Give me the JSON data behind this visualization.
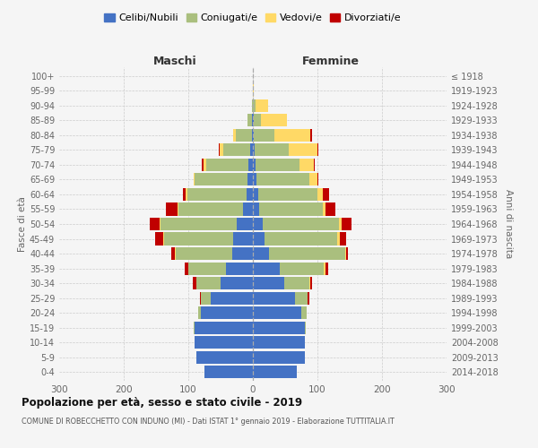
{
  "age_groups": [
    "0-4",
    "5-9",
    "10-14",
    "15-19",
    "20-24",
    "25-29",
    "30-34",
    "35-39",
    "40-44",
    "45-49",
    "50-54",
    "55-59",
    "60-64",
    "65-69",
    "70-74",
    "75-79",
    "80-84",
    "85-89",
    "90-94",
    "95-99",
    "100+"
  ],
  "birth_years": [
    "2014-2018",
    "2009-2013",
    "2004-2008",
    "1999-2003",
    "1994-1998",
    "1989-1993",
    "1984-1988",
    "1979-1983",
    "1974-1978",
    "1969-1973",
    "1964-1968",
    "1959-1963",
    "1954-1958",
    "1949-1953",
    "1944-1948",
    "1939-1943",
    "1934-1938",
    "1929-1933",
    "1924-1928",
    "1919-1923",
    "≤ 1918"
  ],
  "males": {
    "celibi": [
      75,
      88,
      90,
      90,
      80,
      65,
      50,
      42,
      32,
      30,
      25,
      15,
      10,
      8,
      7,
      4,
      2,
      1,
      0,
      0,
      0
    ],
    "coniugati": [
      0,
      0,
      0,
      2,
      5,
      15,
      38,
      58,
      88,
      108,
      118,
      100,
      92,
      82,
      65,
      42,
      25,
      8,
      2,
      0,
      0
    ],
    "vedovi": [
      0,
      0,
      0,
      0,
      0,
      0,
      0,
      0,
      1,
      1,
      2,
      2,
      2,
      2,
      5,
      5,
      4,
      0,
      0,
      0,
      0
    ],
    "divorziati": [
      0,
      0,
      0,
      0,
      0,
      2,
      5,
      5,
      5,
      12,
      15,
      18,
      5,
      0,
      2,
      2,
      0,
      0,
      0,
      0,
      0
    ]
  },
  "females": {
    "nubili": [
      68,
      80,
      80,
      80,
      75,
      65,
      48,
      42,
      25,
      18,
      15,
      10,
      8,
      6,
      4,
      3,
      2,
      1,
      0,
      0,
      0
    ],
    "coniugate": [
      0,
      0,
      0,
      2,
      8,
      20,
      40,
      68,
      118,
      112,
      118,
      98,
      92,
      82,
      68,
      52,
      32,
      12,
      4,
      0,
      0
    ],
    "vedove": [
      0,
      0,
      0,
      0,
      0,
      0,
      1,
      2,
      2,
      5,
      5,
      5,
      8,
      12,
      22,
      45,
      55,
      40,
      20,
      1,
      0
    ],
    "divorziate": [
      0,
      0,
      0,
      0,
      0,
      2,
      3,
      5,
      2,
      10,
      15,
      15,
      10,
      2,
      2,
      2,
      2,
      0,
      0,
      0,
      0
    ]
  },
  "colors": {
    "celibi": "#4472C4",
    "coniugati": "#AABF7E",
    "vedovi": "#FFD966",
    "divorziati": "#C00000"
  },
  "title": "Popolazione per età, sesso e stato civile - 2019",
  "subtitle": "COMUNE DI ROBECCHETTO CON INDUNO (MI) - Dati ISTAT 1° gennaio 2019 - Elaborazione TUTTITALIA.IT",
  "xlabel_left": "Maschi",
  "xlabel_right": "Femmine",
  "ylabel_left": "Fasce di età",
  "ylabel_right": "Anni di nascita",
  "xlim": 300,
  "background_color": "#f5f5f5",
  "grid_color": "#cccccc",
  "legend_labels": [
    "Celibi/Nubili",
    "Coniugati/e",
    "Vedovi/e",
    "Divorziati/e"
  ]
}
